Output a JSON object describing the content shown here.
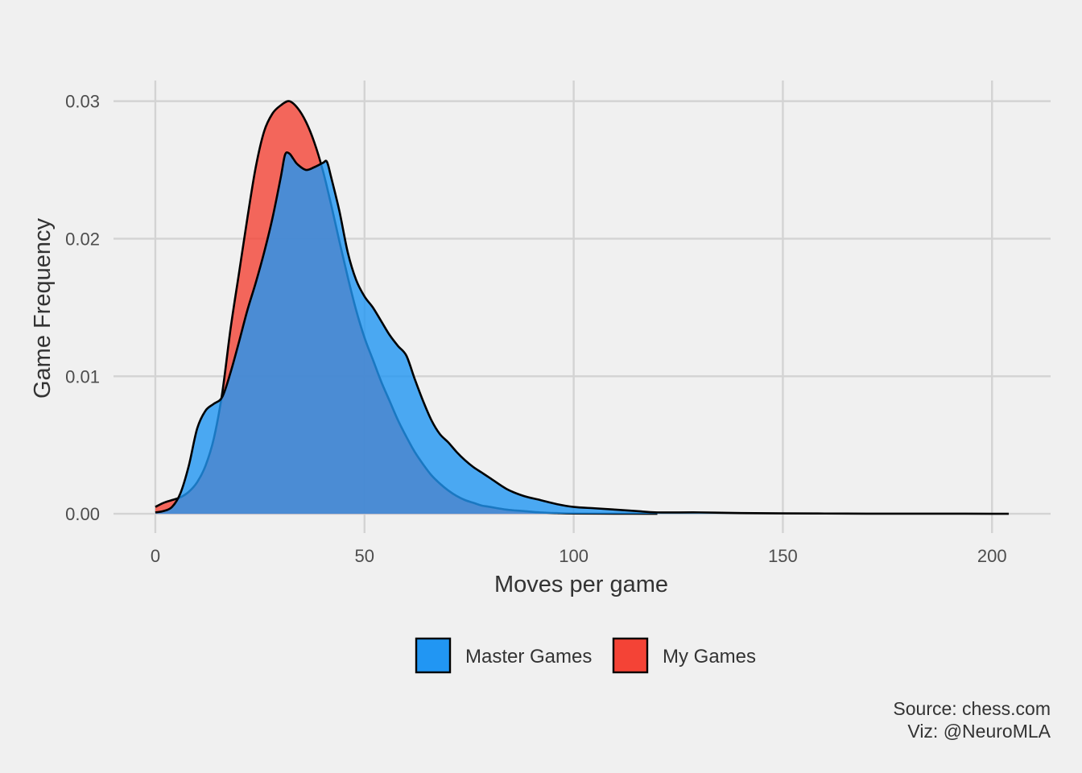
{
  "chart_data": {
    "type": "area",
    "subtype": "density",
    "title": "",
    "xlabel": "Moves per game",
    "ylabel": "Game Frequency",
    "xlim": [
      -10,
      214
    ],
    "ylim": [
      -0.0014,
      0.0315
    ],
    "x_ticks": [
      0,
      50,
      100,
      150,
      200
    ],
    "x_tick_labels": [
      "0",
      "50",
      "100",
      "150",
      "200"
    ],
    "y_ticks": [
      0,
      0.01,
      0.02,
      0.03
    ],
    "y_tick_labels": [
      "0.00",
      "0.01",
      "0.02",
      "0.03"
    ],
    "grid": true,
    "legend_position": "bottom",
    "series": [
      {
        "name": "Master Games",
        "color": "#2196f3",
        "opacity": 0.8,
        "x": [
          0,
          2,
          4,
          6,
          8,
          10,
          12,
          14,
          16,
          18,
          20,
          22,
          24,
          26,
          28,
          30,
          31,
          32,
          33,
          34,
          36,
          38,
          40,
          41,
          42,
          44,
          46,
          48,
          50,
          52,
          54,
          56,
          58,
          60,
          62,
          64,
          66,
          68,
          70,
          72,
          74,
          76,
          78,
          80,
          84,
          88,
          92,
          96,
          100,
          105,
          110,
          115,
          120,
          130,
          140,
          150,
          160,
          170,
          180,
          190,
          200,
          204
        ],
        "values": [
          0.0001,
          0.0002,
          0.0005,
          0.0015,
          0.0035,
          0.0062,
          0.0075,
          0.008,
          0.0085,
          0.0103,
          0.0125,
          0.0148,
          0.0168,
          0.019,
          0.0215,
          0.0245,
          0.0261,
          0.0262,
          0.0258,
          0.0254,
          0.025,
          0.0252,
          0.0255,
          0.0256,
          0.0245,
          0.022,
          0.019,
          0.017,
          0.0158,
          0.015,
          0.014,
          0.013,
          0.0122,
          0.0115,
          0.0098,
          0.0082,
          0.0068,
          0.0058,
          0.0052,
          0.0045,
          0.0039,
          0.0034,
          0.003,
          0.0026,
          0.0018,
          0.0013,
          0.001,
          0.0007,
          0.0005,
          0.0004,
          0.0003,
          0.0002,
          0.0001,
          0.0001,
          5e-05,
          3e-05,
          2e-05,
          1e-05,
          1e-05,
          1e-05,
          0.0,
          0.0
        ]
      },
      {
        "name": "My Games",
        "color": "#f44336",
        "opacity": 0.8,
        "x": [
          0,
          2,
          4,
          6,
          8,
          10,
          12,
          14,
          16,
          18,
          20,
          22,
          24,
          26,
          28,
          30,
          32,
          34,
          36,
          38,
          40,
          42,
          44,
          46,
          48,
          50,
          52,
          54,
          56,
          58,
          60,
          62,
          64,
          66,
          68,
          70,
          72,
          74,
          76,
          78,
          80,
          84,
          88,
          92,
          96,
          100,
          110,
          120
        ],
        "values": [
          0.0005,
          0.0008,
          0.001,
          0.0012,
          0.0016,
          0.0023,
          0.0035,
          0.0055,
          0.0088,
          0.0135,
          0.0175,
          0.0215,
          0.0252,
          0.0278,
          0.0291,
          0.0297,
          0.03,
          0.0295,
          0.0285,
          0.027,
          0.025,
          0.0225,
          0.0198,
          0.0172,
          0.0148,
          0.0128,
          0.0112,
          0.0096,
          0.0082,
          0.0068,
          0.0056,
          0.0045,
          0.0036,
          0.0028,
          0.0022,
          0.0017,
          0.0013,
          0.001,
          0.0008,
          0.0006,
          0.0005,
          0.0003,
          0.0002,
          0.0001,
          5e-05,
          2e-05,
          1e-05,
          0.0
        ]
      }
    ]
  },
  "legend": [
    {
      "label": "Master Games",
      "color": "#2196f3"
    },
    {
      "label": "My Games",
      "color": "#f44336"
    }
  ],
  "caption": {
    "line1": "Source: chess.com",
    "line2": "Viz: @NeuroMLA"
  }
}
